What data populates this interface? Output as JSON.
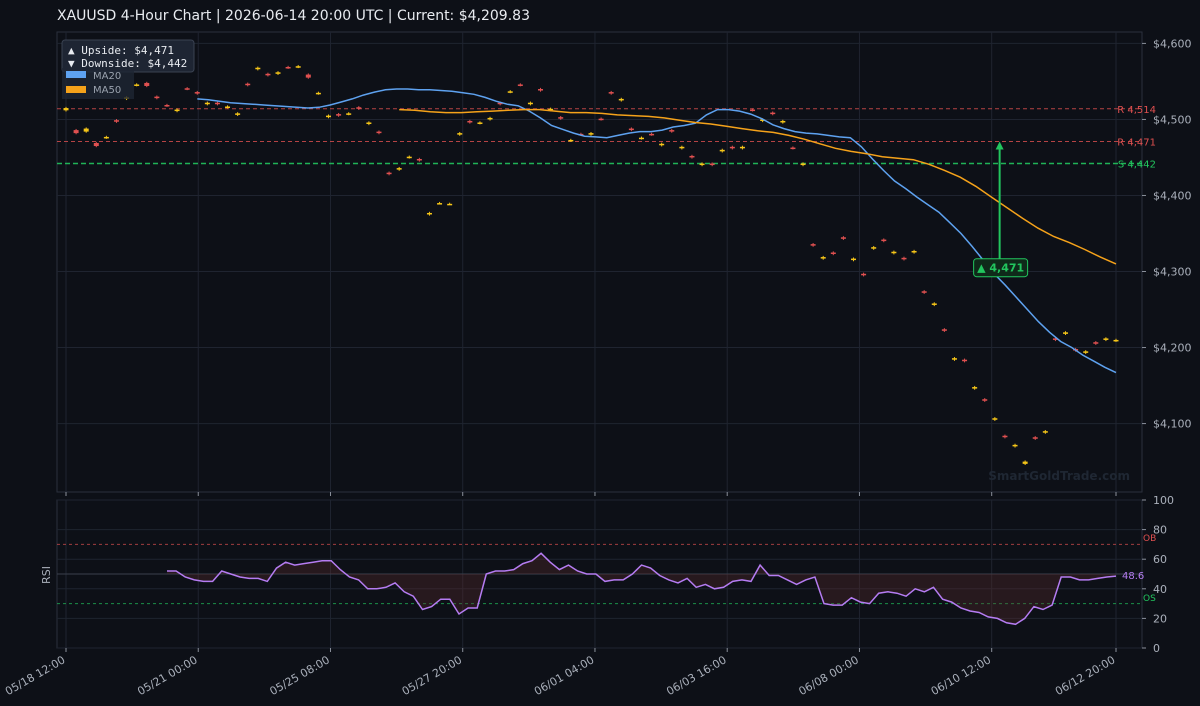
{
  "header": {
    "title": "XAUUSD  4-Hour Chart  |  2026-06-14 20:00 UTC  |  Current: $4,209.83"
  },
  "colors": {
    "background": "#0d1017",
    "plot_bg": "#0d1017",
    "grid": "#1f2430",
    "bull": "#f5c518",
    "bear": "#e05050",
    "ma20": "#5ea2f0",
    "ma50": "#f5a21a",
    "resistance": "#e05050",
    "support": "#22c55e",
    "rsi": "#b57cf2"
  },
  "info_box": {
    "upside": "▲ Upside:   $4,471",
    "downside": "▼ Downside: $4,442"
  },
  "legend": {
    "ma20": "MA20",
    "ma50": "MA50"
  },
  "annotation": {
    "label": "▲ 4,471"
  },
  "watermark": "SmartGoldTrade.com",
  "rsi_panel": {
    "ylabel": "RSI",
    "ob_label": "OB",
    "os_label": "OS",
    "last_value_label": "48.6"
  },
  "chart_data": [
    {
      "type": "candlestick",
      "title": "XAUUSD  4-Hour Chart  |  2026-06-14 20:00 UTC  |  Current: $4,209.83",
      "price_ticks": [
        "$4,100",
        "$4,200",
        "$4,300",
        "$4,400",
        "$4,500",
        "$4,600"
      ],
      "price_tick_values": [
        4100,
        4200,
        4300,
        4400,
        4500,
        4600
      ],
      "ylim": [
        4010,
        4615
      ],
      "x_ticks": [
        "05/18 12:00",
        "05/21 00:00",
        "05/25 08:00",
        "05/27 20:00",
        "06/01 04:00",
        "06/03 16:00",
        "06/08 00:00",
        "06/10 12:00",
        "06/12 20:00"
      ],
      "x_tick_index": [
        0,
        10,
        20,
        30,
        40,
        50,
        60,
        70,
        79.4
      ],
      "levels": [
        {
          "label": "R 4,514",
          "value": 4514,
          "kind": "resistance"
        },
        {
          "label": "R 4,471",
          "value": 4471,
          "kind": "resistance"
        },
        {
          "label": "S 4,442",
          "value": 4442,
          "kind": "support"
        }
      ],
      "annotation_target": 4471,
      "annotation_from": 4305,
      "annotation_index": 70.6,
      "candles_close": [
        4515,
        4482,
        4488,
        4465,
        4477,
        4497,
        4529,
        4546,
        4544,
        4528,
        4518,
        4513,
        4540,
        4534,
        4522,
        4520,
        4517,
        4508,
        4545,
        4568,
        4558,
        4562,
        4568,
        4570,
        4555,
        4535,
        4505,
        4505,
        4508,
        4514,
        4496,
        4482,
        4428,
        4436,
        4451,
        4446,
        4377,
        4390,
        4389,
        4482,
        4496,
        4496,
        4502,
        4520,
        4537,
        4545,
        4522,
        4538,
        4514,
        4501,
        4473,
        4480,
        4482,
        4500,
        4534,
        4527,
        4486,
        4476,
        4480,
        4468,
        4484,
        4464,
        4450,
        4442,
        4440,
        4460,
        4462,
        4464,
        4512,
        4500,
        4507,
        4498,
        4462,
        4442,
        4334,
        4319,
        4323,
        4343,
        4317,
        4295,
        4332,
        4340,
        4326,
        4316,
        4327,
        4272,
        4258,
        4222,
        4186,
        4182,
        4148,
        4130,
        4107,
        4082,
        4072,
        4050,
        4080,
        4090,
        4210,
        4220,
        4196,
        4195,
        4205,
        4212,
        4210
      ],
      "candle_open": [
        4512,
        4486,
        4484,
        4469,
        4476,
        4499,
        4527,
        4545,
        4548,
        4530,
        4519,
        4511,
        4541,
        4536,
        4520,
        4522,
        4516,
        4506,
        4547,
        4566,
        4560,
        4560,
        4569,
        4569,
        4559,
        4534,
        4503,
        4507,
        4507,
        4516,
        4494,
        4484,
        4430,
        4434,
        4450,
        4448,
        4375,
        4390,
        4389,
        4480,
        4498,
        4495,
        4500,
        4522,
        4536,
        4546,
        4520,
        4540,
        4512,
        4503,
        4472,
        4481,
        4480,
        4501,
        4536,
        4525,
        4488,
        4475,
        4481,
        4466,
        4486,
        4462,
        4452,
        4440,
        4442,
        4458,
        4464,
        4462,
        4513,
        4498,
        4509,
        4496,
        4463,
        4440,
        4336,
        4317,
        4325,
        4345,
        4315,
        4297,
        4330,
        4342,
        4324,
        4318,
        4325,
        4274,
        4256,
        4224,
        4184,
        4184,
        4146,
        4132,
        4105,
        4084,
        4070,
        4047,
        4082,
        4088,
        4212,
        4218,
        4198,
        4193,
        4207,
        4210,
        4209
      ],
      "ma20": [
        4527,
        4526,
        4524,
        4522,
        4521,
        4520,
        4519,
        4518,
        4517,
        4516,
        4515,
        4516,
        4519,
        4523,
        4527,
        4532,
        4536,
        4539,
        4540,
        4540,
        4539,
        4539,
        4538,
        4537,
        4535,
        4533,
        4529,
        4524,
        4520,
        4518,
        4511,
        4502,
        4492,
        4487,
        4482,
        4478,
        4477,
        4476,
        4479,
        4482,
        4484,
        4484,
        4486,
        4490,
        4492,
        4495,
        4506,
        4513,
        4513,
        4511,
        4507,
        4501,
        4493,
        4488,
        4484,
        4482,
        4481,
        4479,
        4477,
        4476,
        4464,
        4448,
        4433,
        4419,
        4409,
        4398,
        4388,
        4378,
        4364,
        4350,
        4333,
        4315,
        4297,
        4282,
        4266,
        4250,
        4234,
        4220,
        4208,
        4200,
        4190,
        4182,
        4174,
        4167
      ],
      "ma20_start": 13,
      "ma50": [
        4513,
        4512,
        4510,
        4509,
        4509,
        4510,
        4511,
        4512,
        4513,
        4513,
        4511,
        4509,
        4509,
        4508,
        4506,
        4505,
        4504,
        4502,
        4499,
        4496,
        4494,
        4491,
        4488,
        4485,
        4483,
        4479,
        4474,
        4468,
        4462,
        4458,
        4455,
        4451,
        4449,
        4447,
        4441,
        4433,
        4424,
        4412,
        4398,
        4384,
        4370,
        4357,
        4346,
        4338,
        4329,
        4319,
        4310
      ],
      "ma50_start": 33,
      "ma_index_scale": 1.68
    },
    {
      "type": "line",
      "ylabel": "RSI",
      "ylim": [
        0,
        100
      ],
      "y_ticks": [
        0,
        20,
        40,
        60,
        80,
        100
      ],
      "overbought": 70,
      "oversold": 30,
      "midline": 50,
      "rsi_start": 10,
      "values": [
        52,
        52,
        48,
        46,
        45,
        45,
        52,
        50,
        48,
        47,
        47,
        45,
        54,
        58,
        56,
        57,
        58,
        59,
        59,
        53,
        48,
        46,
        40,
        40,
        41,
        44,
        38,
        35,
        26,
        28,
        33,
        33,
        23,
        27,
        27,
        50,
        52,
        52,
        53,
        57,
        59,
        64,
        58,
        53,
        56,
        52,
        50,
        50,
        45,
        46,
        46,
        50,
        56,
        54,
        49,
        46,
        44,
        47,
        41,
        43,
        40,
        41,
        45,
        46,
        45,
        56,
        49,
        49,
        46,
        43,
        46,
        48,
        30,
        29,
        29,
        34,
        31,
        30,
        37,
        38,
        37,
        35,
        40,
        38,
        41,
        33,
        31,
        27,
        25,
        24,
        21,
        20,
        17,
        16,
        20,
        28,
        26,
        29,
        48,
        48,
        46,
        46,
        47,
        48,
        48.6
      ]
    }
  ]
}
